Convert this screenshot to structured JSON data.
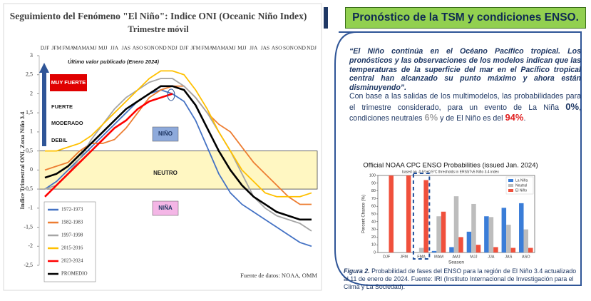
{
  "chart_data": [
    {
      "type": "line",
      "title": "Seguimiento del Fenómeno \"El Niño\": Indice ONI (Oceanic Niño Index)",
      "subtitle": "Trimestre móvil",
      "y_label": "Indice Trimestral ONI, Zona Niño 3.4",
      "categories": [
        "DJF",
        "JFM",
        "FMA",
        "MAM",
        "AMJ",
        "MJJ",
        "JJA",
        "JAS",
        "ASO",
        "SON",
        "OND",
        "NDJ",
        "DJF",
        "JFM",
        "FMA",
        "MAM",
        "AMJ",
        "MJJ",
        "JJA",
        "JAS",
        "ASO",
        "SON",
        "OND",
        "NDJ"
      ],
      "ylim": [
        -2.5,
        3
      ],
      "yticks": [
        {
          "value": -2.5,
          "label": "-2,5"
        },
        -2,
        {
          "value": -1.5,
          "label": "-1,5"
        },
        -1,
        {
          "value": -0.5,
          "label": "-0,5"
        },
        0,
        {
          "value": 0.5,
          "label": "0,5"
        },
        1,
        {
          "value": 1.5,
          "label": "1,5"
        },
        2,
        {
          "value": 2.5,
          "label": "2,5"
        },
        3
      ],
      "neutral_band": [
        -0.5,
        0.5
      ],
      "level_labels": [
        "MUY FUERTE",
        "FUERTE",
        "MODERADO",
        "DEBIL"
      ],
      "region_labels": [
        "NIÑO",
        "NEUTRO",
        "NIÑA"
      ],
      "annotation": "Último valor publicado  (Enero 2024)",
      "source": "Fuente de datos: NOAA, OMM",
      "series": [
        {
          "name": "1972-1973",
          "color": "#4472c4",
          "values": [
            -0.5,
            -0.3,
            0.0,
            0.3,
            0.6,
            0.9,
            1.2,
            1.5,
            1.8,
            2.0,
            2.1,
            2.0,
            1.8,
            1.3,
            0.6,
            -0.1,
            -0.6,
            -0.9,
            -1.1,
            -1.3,
            -1.5,
            -1.7,
            -1.9,
            -2.0
          ]
        },
        {
          "name": "1982-1983",
          "color": "#ed7d31",
          "values": [
            0.0,
            0.1,
            0.2,
            0.5,
            0.7,
            0.7,
            0.8,
            1.1,
            1.5,
            1.9,
            2.1,
            2.2,
            2.2,
            1.9,
            1.5,
            1.2,
            1.0,
            0.6,
            0.2,
            -0.1,
            -0.4,
            -0.7,
            -0.9,
            -0.9
          ]
        },
        {
          "name": "1997-1998",
          "color": "#a5a5a5",
          "values": [
            -0.5,
            -0.4,
            -0.1,
            0.3,
            0.8,
            1.2,
            1.6,
            1.9,
            2.1,
            2.3,
            2.4,
            2.4,
            2.2,
            1.9,
            1.5,
            1.0,
            0.5,
            -0.1,
            -0.7,
            -1.0,
            -1.2,
            -1.3,
            -1.4,
            -1.6
          ]
        },
        {
          "name": "2015-2016",
          "color": "#ffc000",
          "values": [
            0.5,
            0.5,
            0.6,
            0.7,
            0.9,
            1.2,
            1.5,
            1.8,
            2.1,
            2.4,
            2.6,
            2.6,
            2.5,
            2.1,
            1.6,
            1.0,
            0.5,
            0.0,
            -0.3,
            -0.6,
            -0.7,
            -0.7,
            -0.7,
            -0.6
          ]
        },
        {
          "name": "2023-2024",
          "color": "#ff0000",
          "values": [
            -0.7,
            -0.4,
            -0.1,
            0.2,
            0.5,
            0.8,
            1.1,
            1.3,
            1.6,
            1.8,
            1.9,
            2.0,
            null,
            null,
            null,
            null,
            null,
            null,
            null,
            null,
            null,
            null,
            null,
            null
          ]
        },
        {
          "name": "PROMEDIO",
          "color": "#000000",
          "values": [
            -0.2,
            -0.1,
            0.1,
            0.4,
            0.7,
            1.0,
            1.3,
            1.6,
            1.8,
            2.0,
            2.2,
            2.2,
            2.1,
            1.7,
            1.1,
            0.5,
            0.0,
            -0.4,
            -0.7,
            -0.9,
            -1.1,
            -1.2,
            -1.3,
            -1.3
          ]
        }
      ]
    },
    {
      "type": "bar",
      "title": "Official NOAA CPC ENSO Probabilities (issued Jan. 2024)",
      "subtitle": "based on -0.5°/+0.5°C thresholds in ERSSTv5 Niño 3.4 index",
      "y_label": "Percent Chance (%)",
      "x_label": "Season",
      "categories": [
        "DJF",
        "JFM",
        "FMA",
        "MAM",
        "AMJ",
        "MJJ",
        "JJA",
        "JAS",
        "ASO"
      ],
      "ylim": [
        0,
        100
      ],
      "yticks": [
        0,
        10,
        20,
        30,
        40,
        50,
        60,
        70,
        80,
        90,
        100
      ],
      "legend": "upper-right",
      "series": [
        {
          "name": "La Niña",
          "color": "#3a7dd8",
          "values": [
            0,
            0,
            0,
            2,
            7,
            27,
            47,
            58,
            64
          ]
        },
        {
          "name": "Neutral",
          "color": "#bdbdbd",
          "values": [
            0,
            0,
            6,
            47,
            73,
            63,
            46,
            36,
            30
          ]
        },
        {
          "name": "El Niño",
          "color": "#f0503c",
          "values": [
            100,
            100,
            94,
            53,
            20,
            10,
            7,
            6,
            6
          ]
        }
      ]
    }
  ],
  "header": {
    "title": "Pronóstico de la TSM y condiciones ENSO."
  },
  "quote": "“El Niño continúa en el Océano Pacífico tropical. Los pronósticos y las observaciones de los modelos indican que las temperaturas de la superficie del mar en el Pacífico tropical central han alcanzado su punto máximo y ahora están disminuyendo”.",
  "summary": {
    "parts": [
      "Con base a las salidas de los multimodelos, las probabilidades para el trimestre considerado, para un evento de La Niña ",
      "0%",
      ", condiciones neutrales ",
      "6%",
      " y de El Niño es del ",
      "94%",
      "."
    ]
  },
  "caption": {
    "label": "Figura 2.",
    "text": " Probabilidad de fases del ENSO para la región de El Niño 3.4 actualizado al 11 de enero de 2024. Fuente: IRI (Instituto Internacional de Investigación para el Clima y La Sociedad)."
  }
}
